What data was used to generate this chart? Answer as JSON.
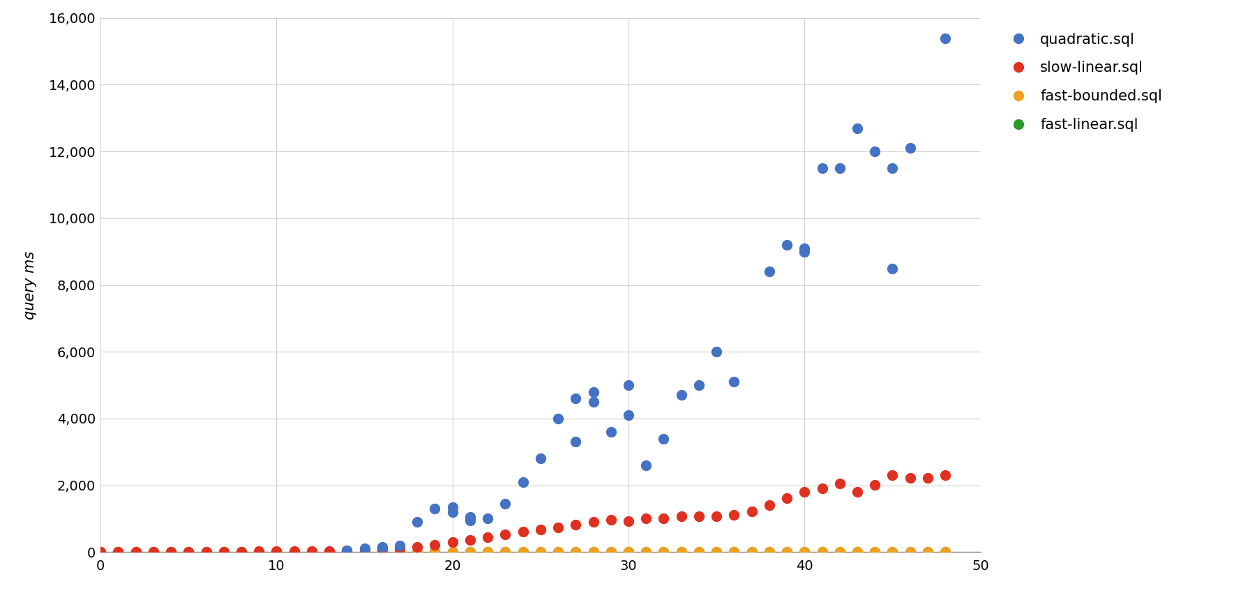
{
  "quadratic_x": [
    14,
    15,
    16,
    17,
    18,
    19,
    20,
    20,
    21,
    21,
    22,
    23,
    24,
    25,
    26,
    27,
    27,
    28,
    28,
    29,
    30,
    30,
    31,
    32,
    33,
    34,
    35,
    36,
    38,
    39,
    40,
    40,
    41,
    42,
    43,
    44,
    45,
    45,
    46,
    48
  ],
  "quadratic_y": [
    50,
    100,
    150,
    200,
    900,
    1300,
    1200,
    1350,
    950,
    1050,
    1000,
    1450,
    2100,
    2800,
    4000,
    3300,
    4600,
    4500,
    4800,
    3600,
    4100,
    5000,
    2600,
    3400,
    4700,
    5000,
    6000,
    5100,
    8400,
    9200,
    9000,
    9100,
    11500,
    11500,
    12700,
    12000,
    11500,
    8500,
    12100,
    15400
  ],
  "slow_linear_x": [
    0,
    1,
    2,
    3,
    4,
    5,
    6,
    7,
    8,
    9,
    10,
    11,
    12,
    13,
    14,
    15,
    16,
    17,
    18,
    19,
    20,
    21,
    22,
    23,
    24,
    25,
    26,
    27,
    28,
    29,
    30,
    31,
    32,
    33,
    34,
    35,
    36,
    37,
    38,
    39,
    40,
    41,
    42,
    43,
    44,
    45,
    46,
    47,
    48
  ],
  "slow_linear_y": [
    2,
    3,
    4,
    5,
    6,
    7,
    8,
    10,
    12,
    15,
    18,
    22,
    28,
    35,
    45,
    60,
    80,
    110,
    160,
    220,
    300,
    370,
    440,
    520,
    600,
    670,
    740,
    820,
    900,
    960,
    920,
    1000,
    1010,
    1060,
    1060,
    1060,
    1110,
    1210,
    1410,
    1610,
    1810,
    1910,
    2060,
    1810,
    2010,
    2310,
    2210,
    2210,
    2310
  ],
  "fast_bounded_x": [
    0,
    1,
    2,
    3,
    4,
    5,
    6,
    7,
    8,
    9,
    10,
    11,
    12,
    13,
    14,
    15,
    16,
    17,
    18,
    19,
    20,
    21,
    22,
    23,
    24,
    25,
    26,
    27,
    28,
    29,
    30,
    31,
    32,
    33,
    34,
    35,
    36,
    37,
    38,
    39,
    40,
    41,
    42,
    43,
    44,
    45,
    46,
    47,
    48
  ],
  "fast_bounded_y": [
    1,
    1,
    1,
    1,
    1,
    1,
    1,
    1,
    1,
    1,
    1,
    1,
    1,
    1,
    2,
    2,
    3,
    3,
    4,
    5,
    5,
    6,
    7,
    7,
    8,
    8,
    9,
    9,
    10,
    10,
    10,
    11,
    11,
    11,
    11,
    11,
    11,
    11,
    11,
    11,
    11,
    11,
    11,
    11,
    12,
    12,
    12,
    12,
    12
  ],
  "fast_linear_x": [
    0,
    1,
    2,
    3,
    4,
    5,
    6,
    7,
    8,
    9,
    10,
    11,
    12,
    13,
    14,
    15,
    16,
    17,
    18,
    19,
    20,
    21,
    22,
    23,
    24,
    25,
    26,
    27,
    28,
    29,
    30,
    31,
    32,
    33,
    34,
    35,
    36,
    37,
    38,
    39,
    40,
    41,
    42,
    43,
    44,
    45,
    46,
    47,
    48
  ],
  "fast_linear_y": [
    1,
    1,
    1,
    1,
    1,
    1,
    1,
    1,
    1,
    1,
    1,
    1,
    1,
    1,
    1,
    1,
    1,
    1,
    2,
    2,
    2,
    2,
    2,
    2,
    2,
    2,
    2,
    2,
    2,
    2,
    2,
    2,
    2,
    2,
    2,
    2,
    2,
    2,
    2,
    3,
    3,
    3,
    3,
    3,
    4,
    4,
    5,
    5,
    8
  ],
  "quadratic_color": "#4472c4",
  "slow_linear_color": "#e03020",
  "fast_bounded_color": "#f0a020",
  "fast_linear_color": "#2a9a2a",
  "ylabel": "query ms",
  "xlim": [
    0,
    50
  ],
  "ylim": [
    0,
    16000
  ],
  "yticks": [
    0,
    2000,
    4000,
    6000,
    8000,
    10000,
    12000,
    14000,
    16000
  ],
  "xticks": [
    0,
    10,
    20,
    30,
    40,
    50
  ],
  "legend_labels": [
    "quadratic.sql",
    "slow-linear.sql",
    "fast-bounded.sql",
    "fast-linear.sql"
  ],
  "legend_colors": [
    "#4472c4",
    "#e03020",
    "#f0a020",
    "#2a9a2a"
  ],
  "background_color": "#ffffff",
  "grid_color": "#d0d0d0",
  "marker_size": 100
}
